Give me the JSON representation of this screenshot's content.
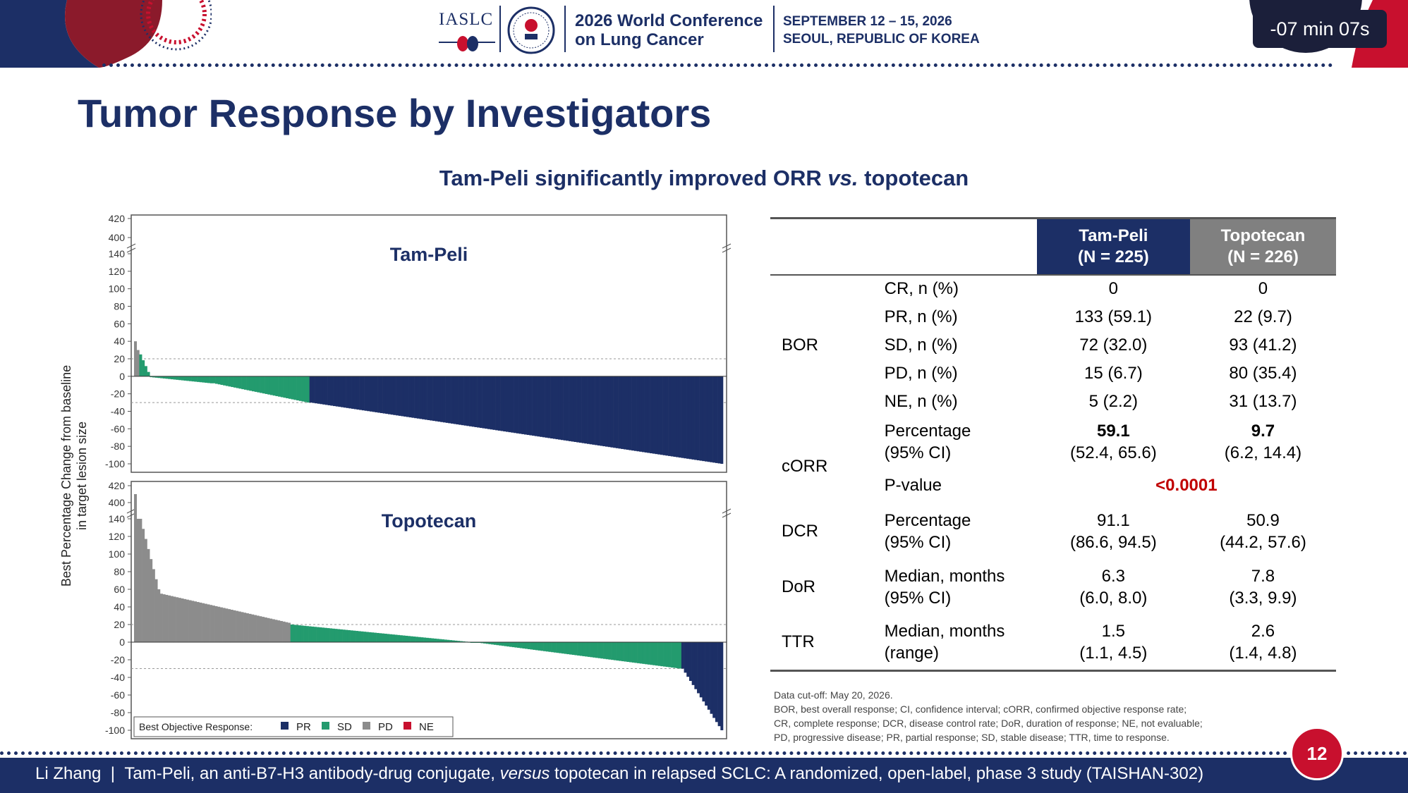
{
  "header": {
    "org": "IASLC",
    "conference_line1": "2026 World Conference",
    "conference_line2": "on Lung Cancer",
    "date_line1": "SEPTEMBER 12 – 15, 2026",
    "date_line2": "SEOUL, REPUBLIC OF KOREA",
    "timer": "-07 min 07s",
    "colors": {
      "navy": "#1c2f66",
      "red": "#c8102e"
    }
  },
  "slide": {
    "title": "Tumor Response by Investigators",
    "subtitle_pre": "Tam-Peli significantly improved ORR ",
    "subtitle_vs": "vs.",
    "subtitle_post": " topotecan",
    "page_number": "12"
  },
  "chart_data": [
    {
      "type": "bar",
      "title": "Tam-Peli",
      "ylabel": "Best Percentage Change from baseline in target lesion size",
      "yticks_upper": [
        400,
        420
      ],
      "yticks": [
        140,
        120,
        100,
        80,
        60,
        40,
        20,
        0,
        -20,
        -40,
        -60,
        -80,
        -100
      ],
      "ylim": [
        -100,
        140
      ],
      "reference_lines": [
        20,
        -30
      ],
      "n_patients": 225,
      "waterfall_segments": [
        {
          "from": 0,
          "to": 2,
          "start": 40,
          "end": 30,
          "response": "PD"
        },
        {
          "from": 2,
          "to": 6,
          "start": 25,
          "end": 5,
          "response": "SD"
        },
        {
          "from": 6,
          "to": 30,
          "start": -1,
          "end": -8,
          "response": "SD"
        },
        {
          "from": 30,
          "to": 67,
          "start": -8,
          "end": -30,
          "response": "SD"
        },
        {
          "from": 67,
          "to": 225,
          "start": -30,
          "end": -100,
          "response": "PR"
        }
      ],
      "colors": {
        "PR": "#1c2f66",
        "SD": "#239b6e",
        "PD": "#8c8c8c",
        "NE": "#c8102e"
      }
    },
    {
      "type": "bar",
      "title": "Topotecan",
      "ylabel": "Best Percentage Change from baseline in target lesion size",
      "yticks_upper": [
        400,
        420
      ],
      "yticks": [
        140,
        120,
        100,
        80,
        60,
        40,
        20,
        0,
        -20,
        -40,
        -60,
        -80,
        -100
      ],
      "ylim": [
        -100,
        140
      ],
      "reference_lines": [
        20,
        -30
      ],
      "n_patients": 226,
      "waterfall_segments": [
        {
          "from": 0,
          "to": 2,
          "start": 410,
          "end": 140,
          "response": "PD"
        },
        {
          "from": 2,
          "to": 10,
          "start": 140,
          "end": 60,
          "response": "PD"
        },
        {
          "from": 10,
          "to": 60,
          "start": 55,
          "end": 22,
          "response": "PD"
        },
        {
          "from": 60,
          "to": 130,
          "start": 20,
          "end": 0,
          "response": "SD"
        },
        {
          "from": 130,
          "to": 210,
          "start": 0,
          "end": -30,
          "response": "SD"
        },
        {
          "from": 210,
          "to": 226,
          "start": -30,
          "end": -100,
          "response": "PR"
        }
      ],
      "colors": {
        "PR": "#1c2f66",
        "SD": "#239b6e",
        "PD": "#8c8c8c",
        "NE": "#c8102e"
      }
    }
  ],
  "legend": {
    "title": "Best Objective Response:",
    "items": [
      {
        "label": "PR",
        "color": "#1c2f66"
      },
      {
        "label": "SD",
        "color": "#239b6e"
      },
      {
        "label": "PD",
        "color": "#8c8c8c"
      },
      {
        "label": "NE",
        "color": "#c8102e"
      }
    ]
  },
  "table": {
    "col1": "Tam-Peli",
    "col1_n": "(N = 225)",
    "col2": "Topotecan",
    "col2_n": "(N = 226)",
    "bor": {
      "label": "BOR",
      "rows": [
        {
          "metric": "CR, n (%)",
          "tam": "0",
          "topo": "0"
        },
        {
          "metric": "PR, n (%)",
          "tam": "133 (59.1)",
          "topo": "22 (9.7)"
        },
        {
          "metric": "SD, n (%)",
          "tam": "72 (32.0)",
          "topo": "93 (41.2)"
        },
        {
          "metric": "PD, n (%)",
          "tam": "15 (6.7)",
          "topo": "80 (35.4)"
        },
        {
          "metric": "NE, n (%)",
          "tam": "5 (2.2)",
          "topo": "31 (13.7)"
        }
      ]
    },
    "corr": {
      "label": "cORR",
      "metric_line1": "Percentage",
      "metric_line2": "(95% CI)",
      "tam_value": "59.1",
      "tam_ci": "(52.4, 65.6)",
      "topo_value": "9.7",
      "topo_ci": "(6.2, 14.4)",
      "pvalue_label": "P-value",
      "pvalue": "<0.0001"
    },
    "dcr": {
      "label": "DCR",
      "metric_line1": "Percentage",
      "metric_line2": "(95% CI)",
      "tam_value": "91.1",
      "tam_ci": "(86.6, 94.5)",
      "topo_value": "50.9",
      "topo_ci": "(44.2, 57.6)"
    },
    "dor": {
      "label": "DoR",
      "metric_line1": "Median, months",
      "metric_line2": "(95% CI)",
      "tam_value": "6.3",
      "tam_ci": "(6.0, 8.0)",
      "topo_value": "7.8",
      "topo_ci": "(3.3, 9.9)"
    },
    "ttr": {
      "label": "TTR",
      "metric_line1": "Median, months",
      "metric_line2": "(range)",
      "tam_value": "1.5",
      "tam_ci": "(1.1, 4.5)",
      "topo_value": "2.6",
      "topo_ci": "(1.4, 4.8)"
    }
  },
  "footnote": {
    "line1": "Data cut-off: May 20, 2026.",
    "line2": "BOR, best overall response; CI, confidence interval; cORR, confirmed objective response rate;",
    "line3": "CR, complete response; DCR, disease control rate; DoR, duration of response; NE, not evaluable;",
    "line4": "PD, progressive disease; PR, partial response; SD, stable disease; TTR, time to response."
  },
  "footer": {
    "presenter": "Li Zhang",
    "separator": "|",
    "text_pre": "Tam-Peli, an anti-B7-H3 antibody-drug conjugate, ",
    "text_versus": "versus",
    "text_post": " topotecan in relapsed SCLC: A randomized, open-label, phase 3 study (TAISHAN-302)"
  }
}
